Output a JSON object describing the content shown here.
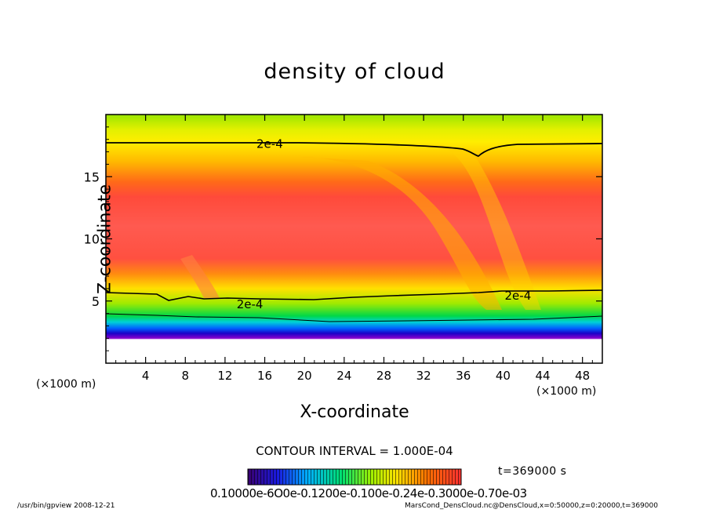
{
  "chart_data": {
    "type": "heatmap",
    "title": "density of cloud",
    "xlabel": "X-coordinate",
    "ylabel": "Z-coordinate",
    "x_unit": "(×1000 m)",
    "y_unit": "(×1000 m)",
    "xlim": [
      0,
      50
    ],
    "ylim": [
      0,
      20
    ],
    "x_ticks": [
      4,
      8,
      12,
      16,
      20,
      24,
      28,
      32,
      36,
      40,
      44,
      48
    ],
    "y_ticks": [
      5,
      10,
      15
    ],
    "grid": false,
    "contour_interval_text": "CONTOUR INTERVAL = 1.000E-04",
    "contour_labels": [
      {
        "text": "2e-4",
        "x": 16.5,
        "y": 17.7
      },
      {
        "text": "2e-4",
        "x": 14.5,
        "y": 4.8
      },
      {
        "text": "2e-4",
        "x": 41.5,
        "y": 5.5
      }
    ],
    "colorbar_tick_text": "0.10000e-6O0e-0.1200e-0.100e-0.24e-0.3000e-0.70e-03",
    "time_text": "t=369000 s"
  },
  "footer": {
    "left": "/usr/bin/gpview   2008-12-21",
    "right": "MarsCond_DensCloud.nc@DensCloud,x=0:50000,z=0:20000,t=369000"
  }
}
